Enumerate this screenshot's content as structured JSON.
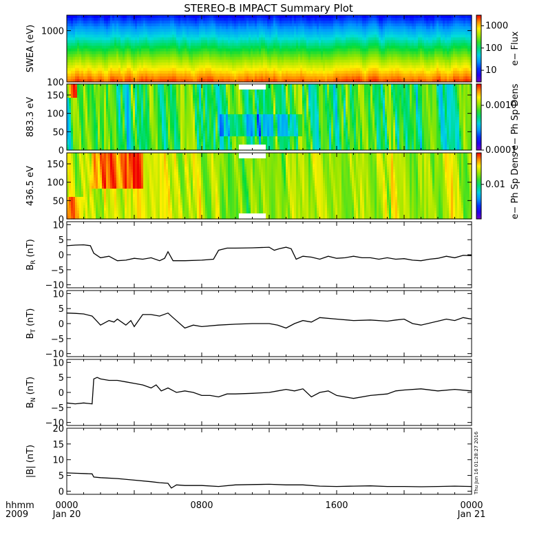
{
  "title": "STEREO-B IMPACT Summary Plot",
  "stamp": "Thu Jun 16 01:28:27 2016",
  "time_axis": {
    "label_top": "hhmm",
    "label_bottom": "2009",
    "ticks": [
      {
        "hhmm": "0000",
        "date": "Jan 20",
        "hour": 0
      },
      {
        "hhmm": "0800",
        "date": "",
        "hour": 8
      },
      {
        "hhmm": "1600",
        "date": "",
        "hour": 16
      },
      {
        "hhmm": "0000",
        "date": "Jan 21",
        "hour": 24
      }
    ]
  },
  "chart_data": [
    {
      "type": "heatmap",
      "ylabel": "SWEA (eV)",
      "yscale": "log",
      "ylim": [
        100,
        2000
      ],
      "yticks": [
        {
          "v": 100,
          "label": "100"
        },
        {
          "v": 1000,
          "label": "1000"
        }
      ],
      "colorbar": {
        "label": "e− Flux",
        "scale": "log",
        "range": [
          3,
          3000
        ],
        "ticks": [
          {
            "v": 10,
            "label": "10"
          },
          {
            "v": 100,
            "label": "100"
          },
          {
            "v": 1000,
            "label": "1000"
          }
        ]
      }
    },
    {
      "type": "heatmap",
      "ylabel": "883.3 eV",
      "ylim": [
        0,
        180
      ],
      "yticks": [
        {
          "v": 0,
          "label": "0"
        },
        {
          "v": 50,
          "label": "50"
        },
        {
          "v": 100,
          "label": "100"
        },
        {
          "v": 150,
          "label": "150"
        }
      ],
      "colorbar": {
        "label": "e− Ph Sp Dens",
        "scale": "log",
        "range": [
          0.0001,
          0.003
        ],
        "ticks": [
          {
            "v": 0.0001,
            "label": "0.0001"
          },
          {
            "v": 0.001,
            "label": "0.0010"
          }
        ]
      },
      "data_gaps_hours": [
        [
          10.2,
          11.8
        ]
      ]
    },
    {
      "type": "heatmap",
      "ylabel": "436.5 eV",
      "ylim": [
        0,
        180
      ],
      "yticks": [
        {
          "v": 0,
          "label": "0"
        },
        {
          "v": 50,
          "label": "50"
        },
        {
          "v": 100,
          "label": "100"
        },
        {
          "v": 150,
          "label": "150"
        }
      ],
      "colorbar": {
        "label": "e− Ph Sp Dens",
        "scale": "log",
        "range": [
          0.003,
          0.03
        ],
        "ticks": [
          {
            "v": 0.01,
            "label": "0.01"
          }
        ]
      },
      "data_gaps_hours": [
        [
          10.2,
          11.8
        ]
      ]
    },
    {
      "type": "line",
      "ylabel": "B",
      "ylabel_sub": "R",
      "ylabel_unit": "(nT)",
      "ylim": [
        -11,
        11
      ],
      "yticks": [
        {
          "v": -10,
          "label": "−10"
        },
        {
          "v": -5,
          "label": "−5"
        },
        {
          "v": 0,
          "label": "0"
        },
        {
          "v": 5,
          "label": "5"
        },
        {
          "v": 10,
          "label": "10"
        }
      ],
      "x": [
        0,
        0.5,
        1,
        1.4,
        1.6,
        2,
        2.5,
        3,
        3.5,
        4,
        4.5,
        5,
        5.5,
        5.8,
        6,
        6.3,
        7,
        8,
        8.7,
        9,
        9.5,
        10,
        11,
        12,
        12.3,
        12.6,
        13,
        13.3,
        13.6,
        14,
        14.5,
        15,
        15.5,
        16,
        16.5,
        17,
        17.5,
        18,
        18.5,
        19,
        19.5,
        20,
        20.5,
        21,
        21.5,
        22,
        22.5,
        23,
        23.5,
        24
      ],
      "y": [
        3.0,
        3.2,
        3.3,
        3.0,
        0.5,
        -1.0,
        -0.5,
        -2.0,
        -1.8,
        -1.2,
        -1.5,
        -1.0,
        -2.0,
        -1.2,
        1.0,
        -2.0,
        -2.0,
        -1.8,
        -1.5,
        1.5,
        2.2,
        2.2,
        2.3,
        2.5,
        1.5,
        2.0,
        2.5,
        2.0,
        -1.5,
        -0.5,
        -0.8,
        -1.5,
        -0.5,
        -1.2,
        -1.0,
        -0.5,
        -1.0,
        -1.0,
        -1.5,
        -1.0,
        -1.5,
        -1.3,
        -1.8,
        -2.0,
        -1.5,
        -1.2,
        -0.5,
        -1.0,
        -0.2,
        -0.3
      ]
    },
    {
      "type": "line",
      "ylabel": "B",
      "ylabel_sub": "T",
      "ylabel_unit": "(nT)",
      "ylim": [
        -11,
        11
      ],
      "yticks": [
        {
          "v": -10,
          "label": "−10"
        },
        {
          "v": -5,
          "label": "−5"
        },
        {
          "v": 0,
          "label": "0"
        },
        {
          "v": 5,
          "label": "5"
        },
        {
          "v": 10,
          "label": "10"
        }
      ],
      "x": [
        0,
        0.5,
        1,
        1.5,
        2,
        2.5,
        2.8,
        3,
        3.5,
        3.8,
        4,
        4.5,
        5,
        5.5,
        6,
        6.3,
        7,
        7.5,
        8,
        9,
        10,
        11,
        12,
        12.5,
        13,
        13.5,
        14,
        14.5,
        15,
        16,
        17,
        18,
        19,
        19.5,
        20,
        20.5,
        21,
        22,
        22.5,
        23,
        23.5,
        24
      ],
      "y": [
        3.5,
        3.4,
        3.2,
        2.5,
        -0.5,
        1.0,
        0.5,
        1.5,
        -0.5,
        1.0,
        -1.0,
        3.0,
        3.0,
        2.5,
        3.5,
        2.0,
        -1.5,
        -0.5,
        -1.0,
        -0.5,
        -0.2,
        0.0,
        0.0,
        -0.5,
        -1.5,
        0.0,
        1.0,
        0.5,
        2.0,
        1.5,
        1.0,
        1.2,
        0.8,
        1.2,
        1.5,
        0.0,
        -0.5,
        0.8,
        1.5,
        1.0,
        2.0,
        1.5
      ]
    },
    {
      "type": "line",
      "ylabel": "B",
      "ylabel_sub": "N",
      "ylabel_unit": "(nT)",
      "ylim": [
        -11,
        11
      ],
      "yticks": [
        {
          "v": -10,
          "label": "−10"
        },
        {
          "v": -5,
          "label": "−5"
        },
        {
          "v": 0,
          "label": "0"
        },
        {
          "v": 5,
          "label": "5"
        },
        {
          "v": 10,
          "label": "10"
        }
      ],
      "x": [
        0,
        0.5,
        1,
        1.5,
        1.6,
        1.8,
        2,
        2.5,
        3,
        3.5,
        4,
        4.5,
        5,
        5.3,
        5.6,
        6,
        6.5,
        7,
        7.5,
        8,
        8.5,
        9,
        9.5,
        10,
        11,
        12,
        12.5,
        13,
        13.5,
        14,
        14.5,
        15,
        15.5,
        16,
        17,
        18,
        19,
        19.5,
        20,
        21,
        22,
        23,
        24
      ],
      "y": [
        -3.5,
        -3.8,
        -3.5,
        -3.8,
        4.5,
        5.0,
        4.5,
        4.0,
        4.0,
        3.5,
        3.0,
        2.5,
        1.5,
        2.5,
        0.5,
        1.5,
        0.0,
        0.5,
        0.0,
        -1.0,
        -1.0,
        -1.5,
        -0.5,
        -0.5,
        -0.3,
        0.0,
        0.5,
        1.0,
        0.5,
        1.2,
        -1.5,
        0.0,
        0.5,
        -1.0,
        -2.0,
        -1.0,
        -0.5,
        0.5,
        0.8,
        1.2,
        0.5,
        1.0,
        0.5
      ]
    },
    {
      "type": "line",
      "ylabel": "|B| (nT)",
      "ylim": [
        -1,
        20
      ],
      "yticks": [
        {
          "v": 0,
          "label": "0"
        },
        {
          "v": 5,
          "label": "5"
        },
        {
          "v": 10,
          "label": "10"
        },
        {
          "v": 15,
          "label": "15"
        },
        {
          "v": 20,
          "label": "20"
        }
      ],
      "x": [
        0,
        0.5,
        1,
        1.5,
        1.6,
        2,
        3,
        4,
        5,
        5.5,
        6,
        6.2,
        6.5,
        7,
        8,
        9,
        10,
        11,
        12,
        13,
        14,
        15,
        16,
        17,
        18,
        19,
        20,
        21,
        22,
        23,
        24
      ],
      "y": [
        5.8,
        5.7,
        5.6,
        5.5,
        4.5,
        4.3,
        4.0,
        3.5,
        3.0,
        2.7,
        2.5,
        1.0,
        2.0,
        1.8,
        1.8,
        1.5,
        2.0,
        2.1,
        2.2,
        2.0,
        2.0,
        1.6,
        1.5,
        1.6,
        1.7,
        1.5,
        1.5,
        1.4,
        1.5,
        1.6,
        1.5
      ]
    }
  ]
}
